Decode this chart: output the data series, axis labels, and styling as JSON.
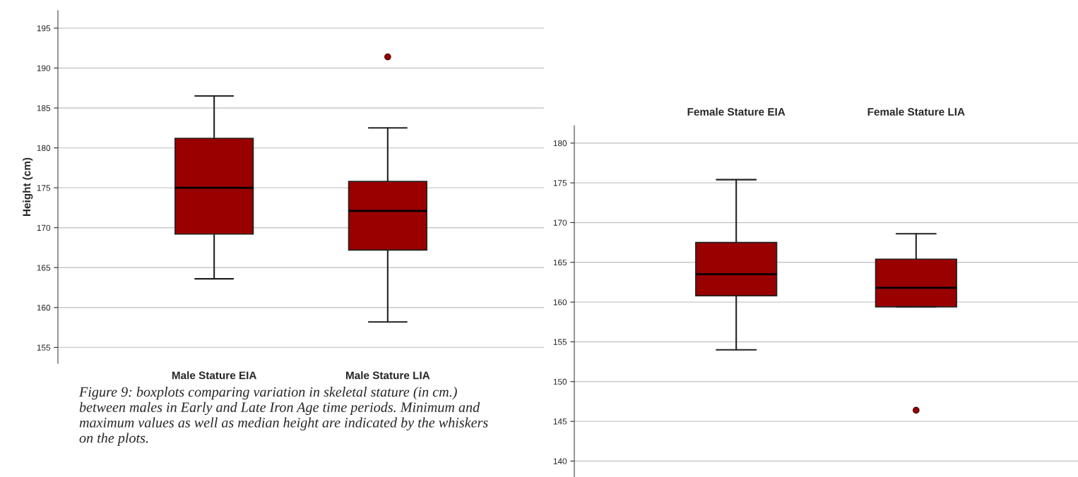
{
  "chart_data": [
    {
      "type": "box",
      "categories": [
        "Male Stature EIA",
        "Male Stature LIA"
      ],
      "ylabel": "Height (cm)",
      "color": "#990000",
      "boxes": [
        {
          "low": 163.6,
          "q1": 169.2,
          "median": 175.0,
          "q3": 181.2,
          "high": 186.5
        },
        {
          "low": 158.2,
          "q1": 167.2,
          "median": 172.1,
          "q3": 175.8,
          "high": 182.5,
          "outliers": [
            191.4
          ]
        }
      ],
      "ylim": [
        153,
        197.2
      ],
      "yticks": [
        155,
        160,
        165,
        170,
        175,
        180,
        185,
        190,
        195
      ],
      "grid": "y",
      "annotations": [
        "Figure 9: boxplots comparing variation in skeletal stature (in cm.) between males in Early and Late Iron Age time periods. Minimum and maximum values as well as median height are indicated by the whiskers on the plots."
      ]
    },
    {
      "type": "box",
      "categories": [
        "Female Stature EIA",
        "Female Stature LIA"
      ],
      "color": "#990000",
      "boxes": [
        {
          "low": 154.0,
          "q1": 160.8,
          "median": 163.5,
          "q3": 167.5,
          "high": 175.4
        },
        {
          "low": 159.4,
          "q1": 159.4,
          "median": 161.8,
          "q3": 165.4,
          "high": 168.6,
          "outliers": [
            146.4
          ]
        }
      ],
      "ylim": [
        138,
        182.2
      ],
      "yticks": [
        140,
        145,
        150,
        155,
        160,
        165,
        170,
        175,
        180
      ],
      "grid": "y"
    }
  ]
}
